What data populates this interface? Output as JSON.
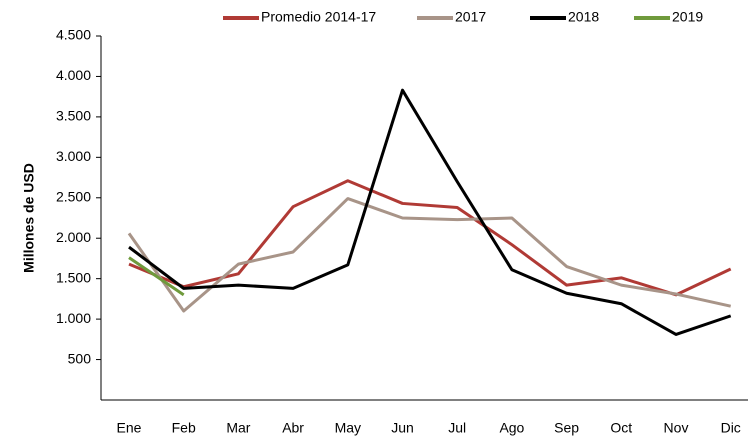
{
  "chart_data": {
    "type": "line",
    "y_label": "Millones de USD",
    "categories": [
      "Ene",
      "Feb",
      "Mar",
      "Abr",
      "May",
      "Jun",
      "Jul",
      "Ago",
      "Sep",
      "Oct",
      "Nov",
      "Dic"
    ],
    "series": [
      {
        "name": "Promedio 2014-17",
        "color": "#b03a35",
        "values": [
          1680,
          1400,
          1560,
          2390,
          2710,
          2430,
          2380,
          1920,
          1420,
          1510,
          1300,
          1620
        ]
      },
      {
        "name": "2017",
        "color": "#a89488",
        "values": [
          2060,
          1100,
          1680,
          1830,
          2490,
          2250,
          2230,
          2250,
          1650,
          1420,
          1310,
          1160
        ]
      },
      {
        "name": "2018",
        "color": "#000000",
        "values": [
          1890,
          1380,
          1420,
          1380,
          1670,
          3830,
          2700,
          1610,
          1320,
          1190,
          810,
          1040
        ]
      },
      {
        "name": "2019",
        "color": "#6f9a3c",
        "values": [
          1760,
          1300,
          null,
          null,
          null,
          null,
          null,
          null,
          null,
          null,
          null,
          null
        ]
      }
    ],
    "ylim": [
      0,
      4500
    ],
    "yticks": [
      500,
      {
        "value": 1000,
        "label": "1.000"
      },
      {
        "value": 1500,
        "label": "1.500"
      },
      {
        "value": 2000,
        "label": "2.000"
      },
      {
        "value": 2500,
        "label": "2.500"
      },
      {
        "value": 3000,
        "label": "3.000"
      },
      {
        "value": 3500,
        "label": "3.500"
      },
      {
        "value": 4000,
        "label": "4.000"
      },
      {
        "value": 4500,
        "label": "4.500"
      }
    ],
    "legend": "top",
    "grid": false
  }
}
